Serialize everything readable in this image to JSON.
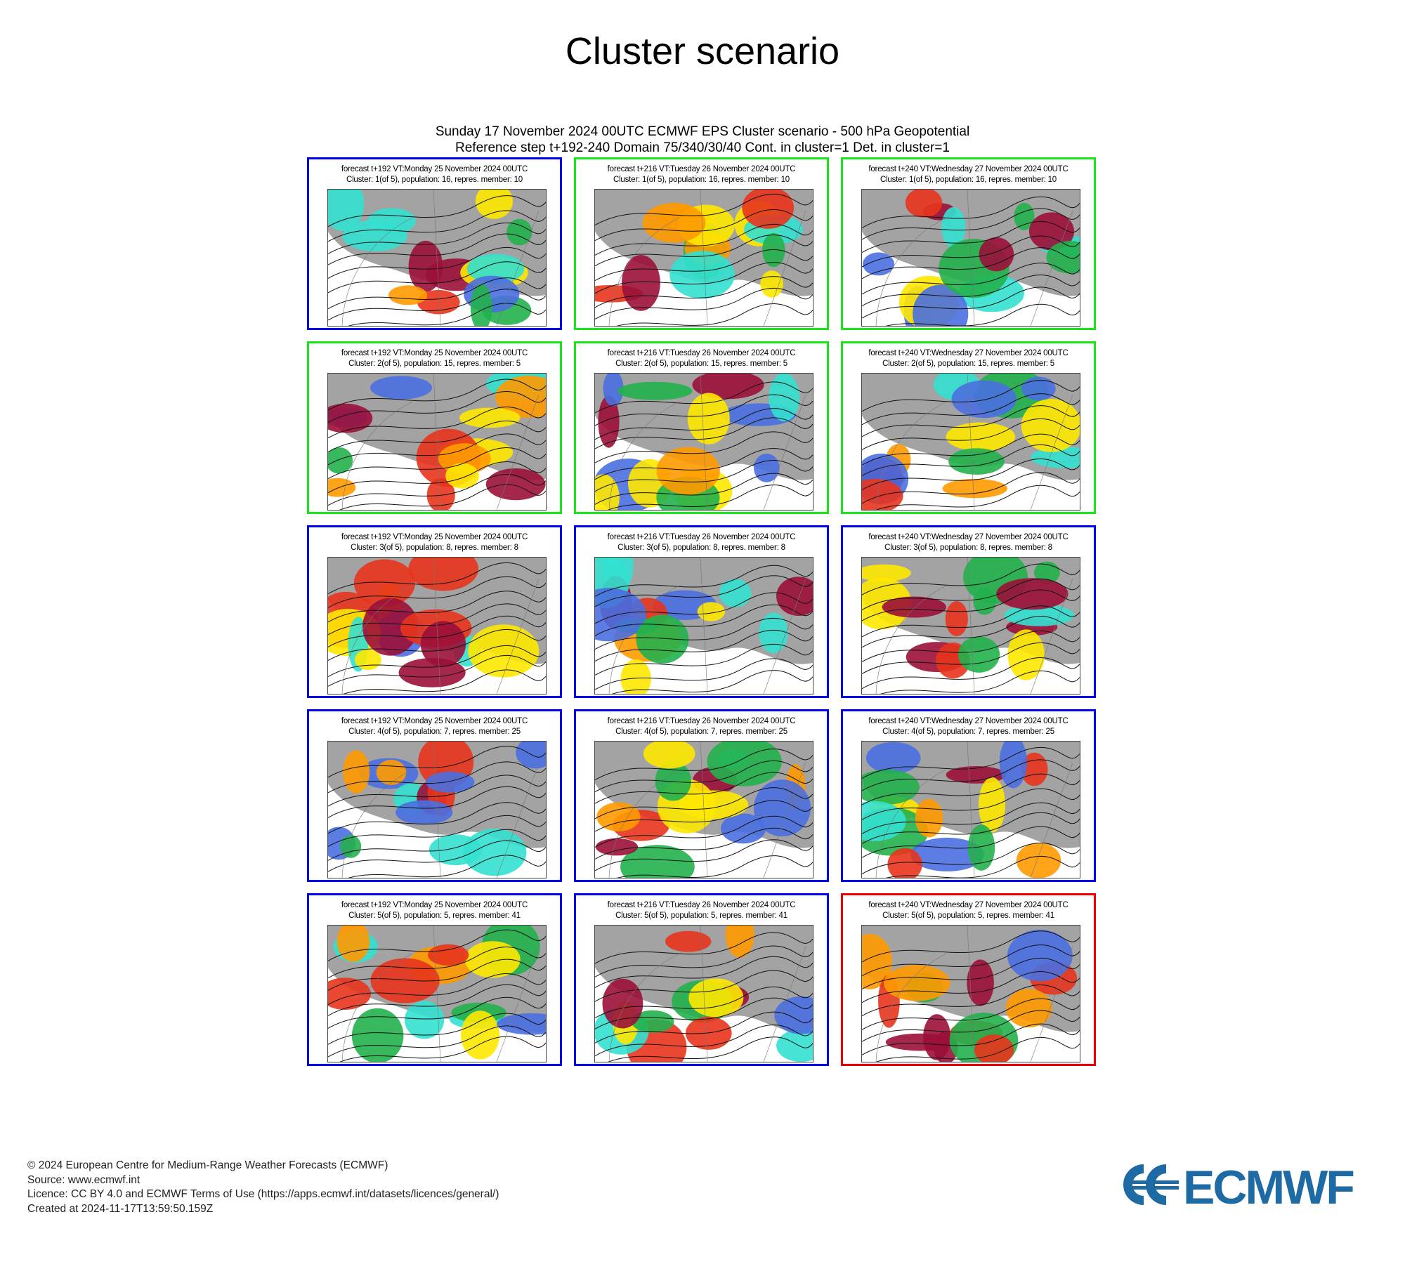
{
  "page": {
    "title": "Cluster scenario"
  },
  "header": {
    "line1": "Sunday 17 November 2024 00UTC ECMWF EPS Cluster scenario - 500 hPa Geopotential",
    "line2": "Reference step t+192-240 Domain 75/340/30/40 Cont. in cluster=1 Det. in cluster=1"
  },
  "legend": {
    "border_colors": {
      "green": "#19e619",
      "blue": "#0000ee",
      "red": "#ee0000"
    }
  },
  "panels": [
    {
      "row": 0,
      "col": 0,
      "frame": "blue",
      "caption1": "forecast t+192 VT:Monday 25 November 2024 00UTC",
      "caption2": "Cluster: 1(of 5), population: 16, repres. member: 10"
    },
    {
      "row": 0,
      "col": 1,
      "frame": "green",
      "caption1": "forecast t+216 VT:Tuesday 26 November 2024 00UTC",
      "caption2": "Cluster: 1(of 5), population: 16, repres. member: 10"
    },
    {
      "row": 0,
      "col": 2,
      "frame": "green",
      "caption1": "forecast t+240 VT:Wednesday 27 November 2024 00UTC",
      "caption2": "Cluster: 1(of 5), population: 16, repres. member: 10"
    },
    {
      "row": 1,
      "col": 0,
      "frame": "green",
      "caption1": "forecast t+192 VT:Monday 25 November 2024 00UTC",
      "caption2": "Cluster: 2(of 5), population: 15, repres. member: 5"
    },
    {
      "row": 1,
      "col": 1,
      "frame": "green",
      "caption1": "forecast t+216 VT:Tuesday 26 November 2024 00UTC",
      "caption2": "Cluster: 2(of 5), population: 15, repres. member: 5"
    },
    {
      "row": 1,
      "col": 2,
      "frame": "green",
      "caption1": "forecast t+240 VT:Wednesday 27 November 2024 00UTC",
      "caption2": "Cluster: 2(of 5), population: 15, repres. member: 5"
    },
    {
      "row": 2,
      "col": 0,
      "frame": "blue",
      "caption1": "forecast t+192 VT:Monday 25 November 2024 00UTC",
      "caption2": "Cluster: 3(of 5), population: 8, repres. member: 8"
    },
    {
      "row": 2,
      "col": 1,
      "frame": "blue",
      "caption1": "forecast t+216 VT:Tuesday 26 November 2024 00UTC",
      "caption2": "Cluster: 3(of 5), population: 8, repres. member: 8"
    },
    {
      "row": 2,
      "col": 2,
      "frame": "blue",
      "caption1": "forecast t+240 VT:Wednesday 27 November 2024 00UTC",
      "caption2": "Cluster: 3(of 5), population: 8, repres. member: 8"
    },
    {
      "row": 3,
      "col": 0,
      "frame": "blue",
      "caption1": "forecast t+192 VT:Monday 25 November 2024 00UTC",
      "caption2": "Cluster: 4(of 5), population: 7, repres. member: 25"
    },
    {
      "row": 3,
      "col": 1,
      "frame": "blue",
      "caption1": "forecast t+216 VT:Tuesday 26 November 2024 00UTC",
      "caption2": "Cluster: 4(of 5), population: 7, repres. member: 25"
    },
    {
      "row": 3,
      "col": 2,
      "frame": "blue",
      "caption1": "forecast t+240 VT:Wednesday 27 November 2024 00UTC",
      "caption2": "Cluster: 4(of 5), population: 7, repres. member: 25"
    },
    {
      "row": 4,
      "col": 0,
      "frame": "blue",
      "caption1": "forecast t+192 VT:Monday 25 November 2024 00UTC",
      "caption2": "Cluster: 5(of 5), population: 5, repres. member: 41"
    },
    {
      "row": 4,
      "col": 1,
      "frame": "blue",
      "caption1": "forecast t+216 VT:Tuesday 26 November 2024 00UTC",
      "caption2": "Cluster: 5(of 5), population: 5, repres. member: 41"
    },
    {
      "row": 4,
      "col": 2,
      "frame": "red",
      "caption1": "forecast t+240 VT:Wednesday 27 November 2024 00UTC",
      "caption2": "Cluster: 5(of 5), population: 5, repres. member: 41"
    }
  ],
  "footer": {
    "copyright": "© 2024 European Centre for Medium-Range Weather Forecasts (ECMWF)",
    "source": "Source: www.ecmwf.int",
    "licence": "Licence: CC BY 4.0 and ECMWF Terms of Use (https://apps.ecmwf.int/datasets/licences/general/)",
    "created": "Created at 2024-11-17T13:59:50.159Z"
  },
  "logo": {
    "text": "ECMWF",
    "color": "#1d6aa5"
  }
}
